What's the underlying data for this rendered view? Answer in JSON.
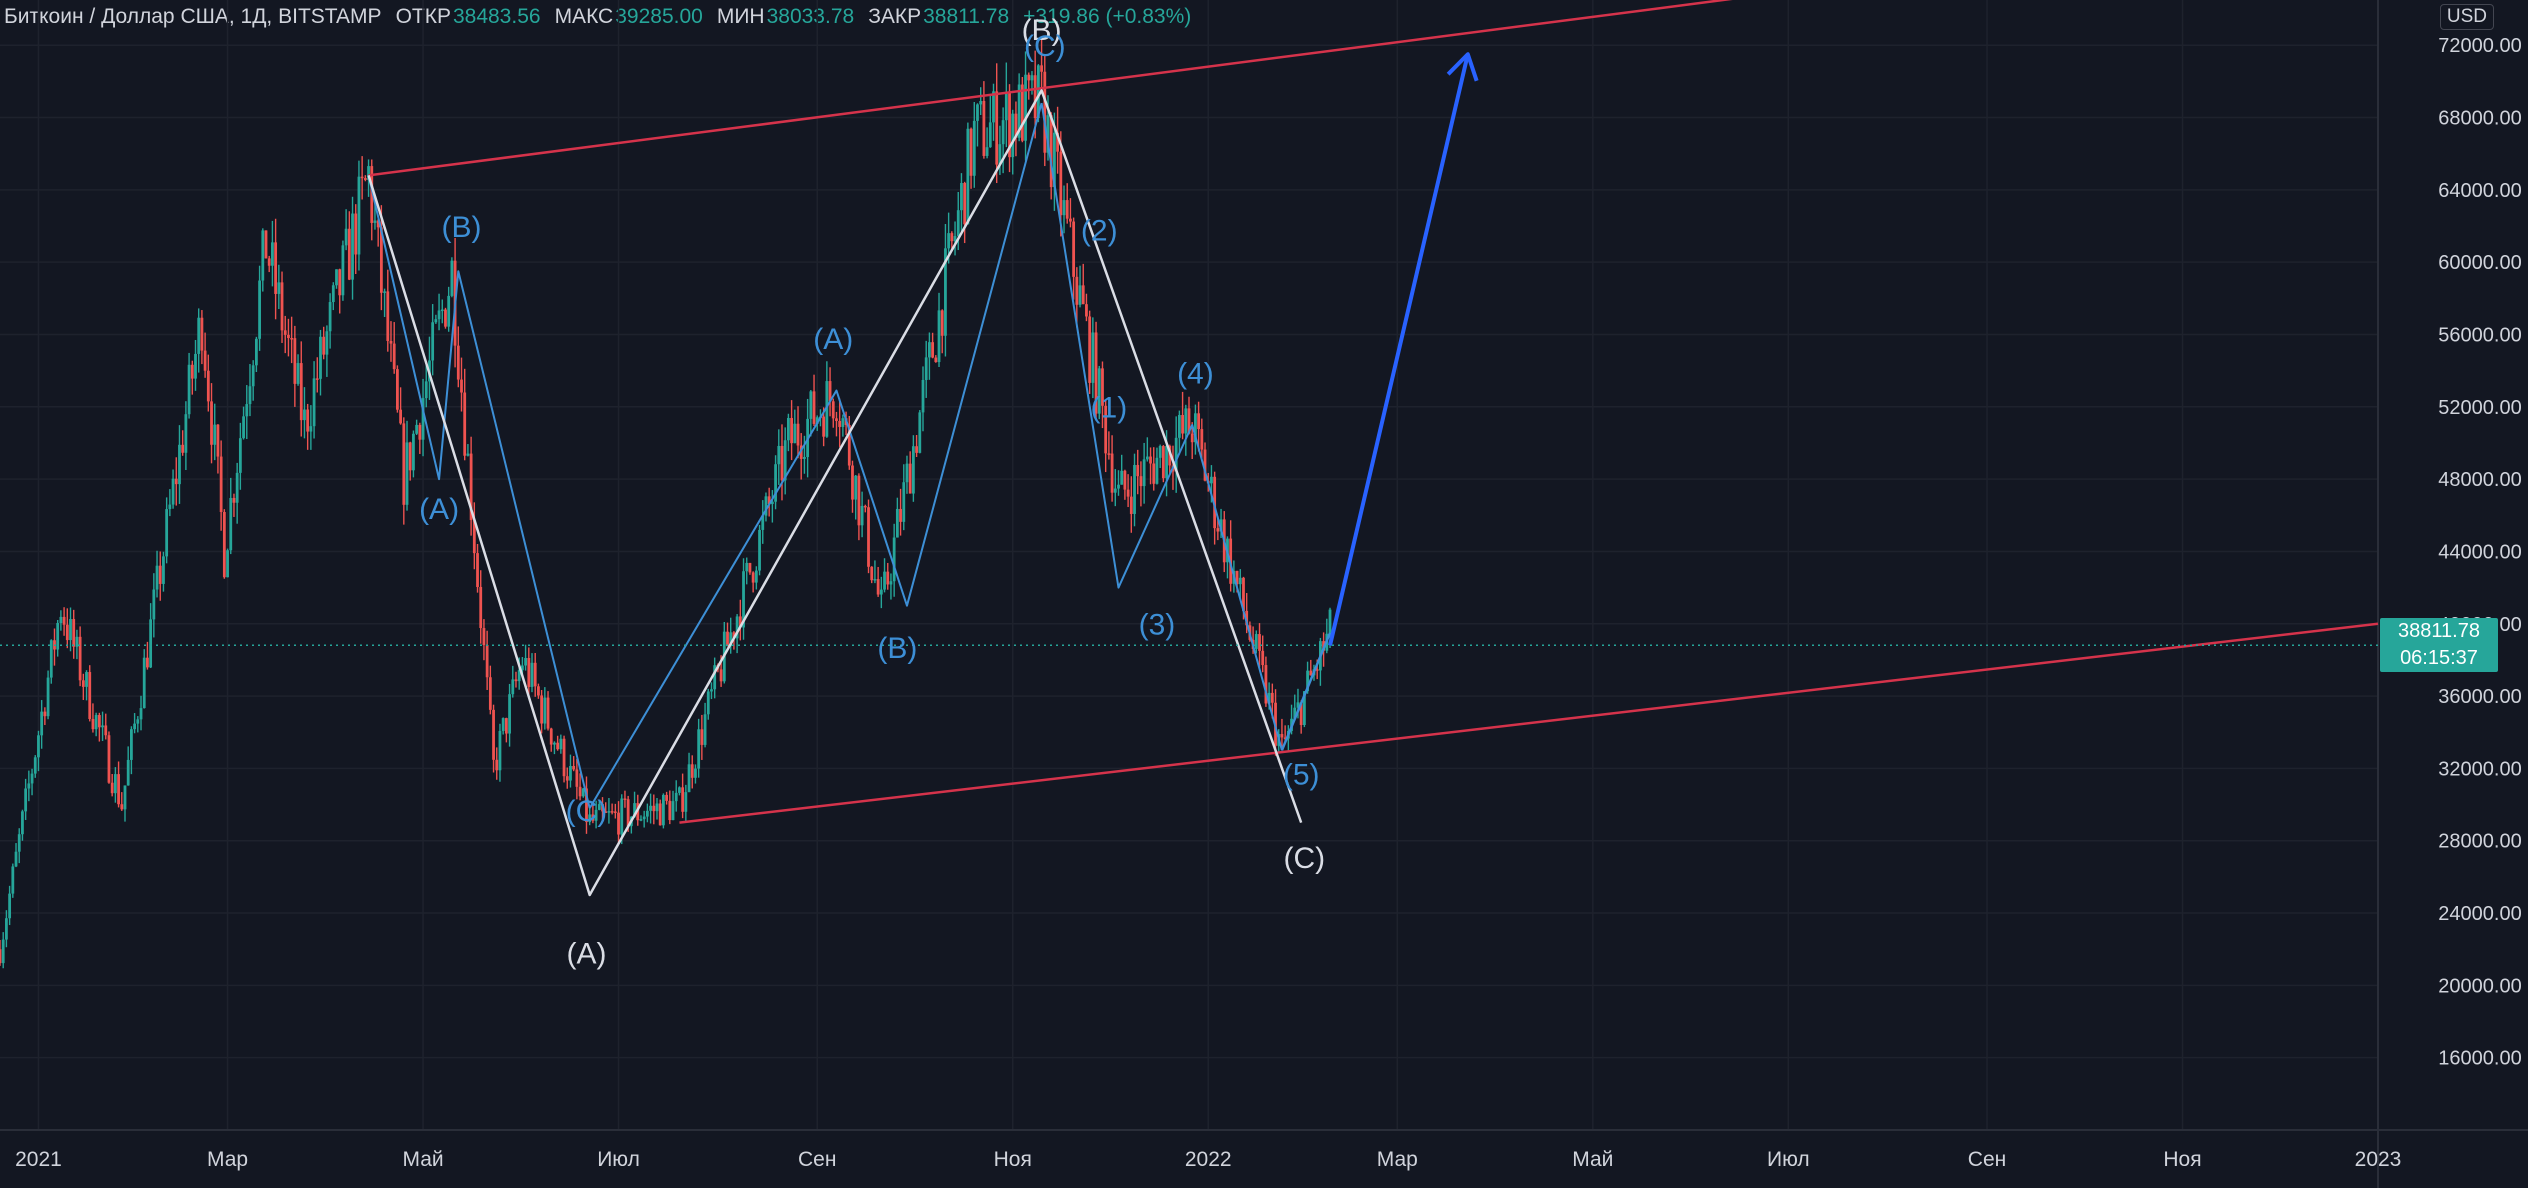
{
  "header": {
    "title": "Биткоин / Доллар США, 1Д, BITSTAMP",
    "open_label": "ОТКР",
    "open": "38483.56",
    "high_label": "МАКС",
    "high": "39285.00",
    "low_label": "МИН",
    "low": "38033.78",
    "close_label": "ЗАКР",
    "close": "38811.78",
    "change": "+319.86 (+0.83%)"
  },
  "currency": "USD",
  "last_price": {
    "price": "38811.78",
    "countdown": "06:15:37"
  },
  "colors": {
    "background": "#131722",
    "grid": "#1e222d",
    "up": "#26a69a",
    "down": "#ef5350",
    "channel": "#d5334b",
    "projection": "#2962ff",
    "primary_wave": "#dadde5",
    "minor_wave": "#3d8fd6",
    "text": "#d1d4dc"
  },
  "chart_data": {
    "type": "candlestick",
    "title": "Биткоин / Доллар США, 1Д, BITSTAMP",
    "y_ticks": [
      "72000.00",
      "68000.00",
      "64000.00",
      "60000.00",
      "56000.00",
      "52000.00",
      "48000.00",
      "44000.00",
      "40000.00",
      "36000.00",
      "32000.00",
      "28000.00",
      "24000.00",
      "20000.00",
      "16000.00"
    ],
    "x_ticks": [
      "2021",
      "Мар",
      "Май",
      "Июл",
      "Сен",
      "Ноя",
      "2022",
      "Мар",
      "Май",
      "Июл",
      "Сен",
      "Ноя",
      "2023"
    ],
    "x_tick_dates": [
      "2021-01-01",
      "2021-03-01",
      "2021-05-01",
      "2021-07-01",
      "2021-09-01",
      "2021-11-01",
      "2022-01-01",
      "2022-03-01",
      "2022-05-01",
      "2022-07-01",
      "2022-09-01",
      "2022-11-01",
      "2023-01-01"
    ],
    "ylim": [
      12000,
      74500
    ],
    "xlim": [
      "2020-12-20",
      "2023-01-01"
    ],
    "price_path": [
      [
        "2020-12-20",
        22000
      ],
      [
        "2021-01-08",
        41000
      ],
      [
        "2021-01-27",
        30000
      ],
      [
        "2021-02-21",
        57000
      ],
      [
        "2021-02-28",
        44000
      ],
      [
        "2021-03-13",
        61000
      ],
      [
        "2021-03-25",
        51000
      ],
      [
        "2021-04-14",
        64800
      ],
      [
        "2021-04-25",
        48000
      ],
      [
        "2021-05-10",
        59500
      ],
      [
        "2021-05-23",
        32000
      ],
      [
        "2021-06-01",
        38000
      ],
      [
        "2021-06-22",
        29000
      ],
      [
        "2021-07-20",
        30000
      ],
      [
        "2021-08-23",
        50000
      ],
      [
        "2021-09-07",
        52900
      ],
      [
        "2021-09-21",
        40700
      ],
      [
        "2021-10-20",
        67000
      ],
      [
        "2021-11-10",
        68800
      ],
      [
        "2021-12-04",
        47000
      ],
      [
        "2021-12-27",
        51000
      ],
      [
        "2022-01-24",
        33000
      ],
      [
        "2022-02-08",
        39500
      ]
    ],
    "overlays": {
      "channel_upper": [
        [
          "2021-04-14",
          64800
        ],
        [
          "2022-08-15",
          76000
        ]
      ],
      "channel_lower": [
        [
          "2021-07-20",
          29000
        ],
        [
          "2023-01-01",
          40000
        ]
      ],
      "projection": [
        [
          "2022-02-08",
          38800
        ],
        [
          "2022-03-23",
          71500
        ]
      ],
      "primary_wave": [
        [
          "2021-04-14",
          64800
        ],
        [
          "2021-06-22",
          25000
        ],
        [
          "2021-11-10",
          69500
        ],
        [
          "2022-01-30",
          29000
        ]
      ],
      "minor_wave_a": [
        [
          "2021-04-14",
          64800
        ],
        [
          "2021-05-06",
          48000
        ],
        [
          "2021-05-12",
          59500
        ],
        [
          "2021-06-22",
          29800
        ]
      ],
      "minor_wave_b": [
        [
          "2021-06-22",
          29800
        ],
        [
          "2021-09-07",
          52900
        ],
        [
          "2021-09-29",
          41000
        ],
        [
          "2021-11-10",
          68800
        ]
      ],
      "minor_wave_c": [
        [
          "2021-11-10",
          68800
        ],
        [
          "2021-12-04",
          42000
        ],
        [
          "2021-12-27",
          51000
        ],
        [
          "2022-01-24",
          33000
        ]
      ],
      "reversal": [
        [
          "2022-01-24",
          33000
        ],
        [
          "2022-02-08",
          39500
        ]
      ]
    },
    "labels": [
      {
        "text": "(B)",
        "date": "2021-11-10",
        "price": 72300,
        "style": "primary"
      },
      {
        "text": "(C)",
        "date": "2021-11-11",
        "price": 71400,
        "style": "minor"
      },
      {
        "text": "(B)",
        "date": "2021-05-13",
        "price": 61400,
        "style": "minor"
      },
      {
        "text": "(A)",
        "date": "2021-05-06",
        "price": 45800,
        "style": "minor"
      },
      {
        "text": "(A)",
        "date": "2021-09-06",
        "price": 55200,
        "style": "minor"
      },
      {
        "text": "(B)",
        "date": "2021-09-26",
        "price": 38100,
        "style": "minor"
      },
      {
        "text": "(C)",
        "date": "2021-06-21",
        "price": 29100,
        "style": "minor"
      },
      {
        "text": "(A)",
        "date": "2021-06-21",
        "price": 21200,
        "style": "primary"
      },
      {
        "text": "(2)",
        "date": "2021-11-28",
        "price": 61200,
        "style": "minor"
      },
      {
        "text": "(1)",
        "date": "2021-12-01",
        "price": 51400,
        "style": "minor"
      },
      {
        "text": "(4)",
        "date": "2021-12-28",
        "price": 53300,
        "style": "minor"
      },
      {
        "text": "(3)",
        "date": "2021-12-16",
        "price": 39400,
        "style": "minor"
      },
      {
        "text": "(5)",
        "date": "2022-01-30",
        "price": 31100,
        "style": "minor"
      },
      {
        "text": "(C)",
        "date": "2022-01-31",
        "price": 26500,
        "style": "primary"
      }
    ]
  }
}
